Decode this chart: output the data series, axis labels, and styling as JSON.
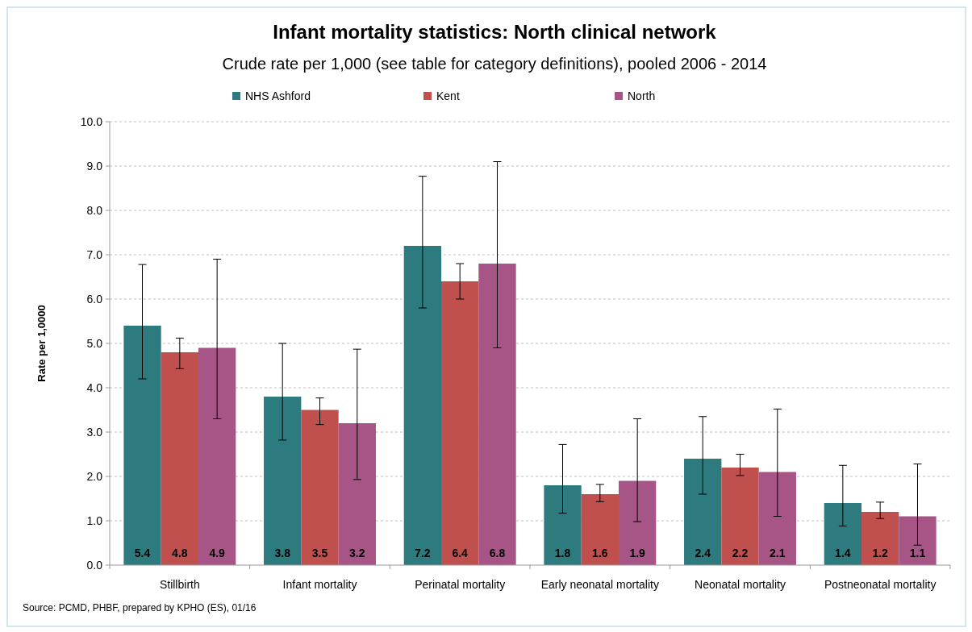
{
  "chart_data": {
    "type": "bar",
    "title": "Infant mortality statistics: North clinical network",
    "subtitle": "Crude rate per 1,000 (see table for category definitions), pooled 2006 - 2014",
    "ylabel": "Rate per 1,0000",
    "categories": [
      "Stillbirth",
      "Infant mortality",
      "Perinatal mortality",
      "Early neonatal mortality",
      "Neonatal mortality",
      "Postneonatal mortality"
    ],
    "series": [
      {
        "name": "NHS Ashford",
        "color": "#2e7b7f",
        "values": [
          5.4,
          3.8,
          7.2,
          1.8,
          2.4,
          1.4
        ],
        "errors": [
          [
            4.2,
            6.78
          ],
          [
            2.82,
            5.0
          ],
          [
            5.8,
            8.77
          ],
          [
            1.17,
            2.72
          ],
          [
            1.6,
            3.35
          ],
          [
            0.88,
            2.25
          ]
        ]
      },
      {
        "name": "Kent",
        "color": "#c0504d",
        "values": [
          4.8,
          3.5,
          6.4,
          1.6,
          2.2,
          1.2
        ],
        "errors": [
          [
            4.43,
            5.12
          ],
          [
            3.17,
            3.77
          ],
          [
            6.0,
            6.8
          ],
          [
            1.43,
            1.82
          ],
          [
            2.02,
            2.5
          ],
          [
            1.05,
            1.42
          ]
        ]
      },
      {
        "name": "North",
        "color": "#a65586",
        "values": [
          4.9,
          3.2,
          6.8,
          1.9,
          2.1,
          1.1
        ],
        "errors": [
          [
            3.3,
            6.9
          ],
          [
            1.93,
            4.87
          ],
          [
            4.9,
            9.1
          ],
          [
            0.98,
            3.3
          ],
          [
            1.1,
            3.52
          ],
          [
            0.45,
            2.28
          ]
        ]
      }
    ],
    "ylim": [
      0,
      10
    ],
    "yticks": [
      {
        "value": 0,
        "label": "0.0"
      },
      {
        "value": 1,
        "label": "1.0"
      },
      {
        "value": 2,
        "label": "2.0"
      },
      {
        "value": 3,
        "label": "3.0"
      },
      {
        "value": 4,
        "label": "4.0"
      },
      {
        "value": 5,
        "label": "5.0"
      },
      {
        "value": 6,
        "label": "6.0"
      },
      {
        "value": 7,
        "label": "7.0"
      },
      {
        "value": 8,
        "label": "8.0"
      },
      {
        "value": 9,
        "label": "9.0"
      },
      {
        "value": 10,
        "label": "10.0"
      }
    ],
    "grid": "y",
    "legend": "top",
    "data_labels": true,
    "annotations": [
      "Source: PCMD, PHBF, prepared by KPHO (ES), 01/16"
    ]
  }
}
